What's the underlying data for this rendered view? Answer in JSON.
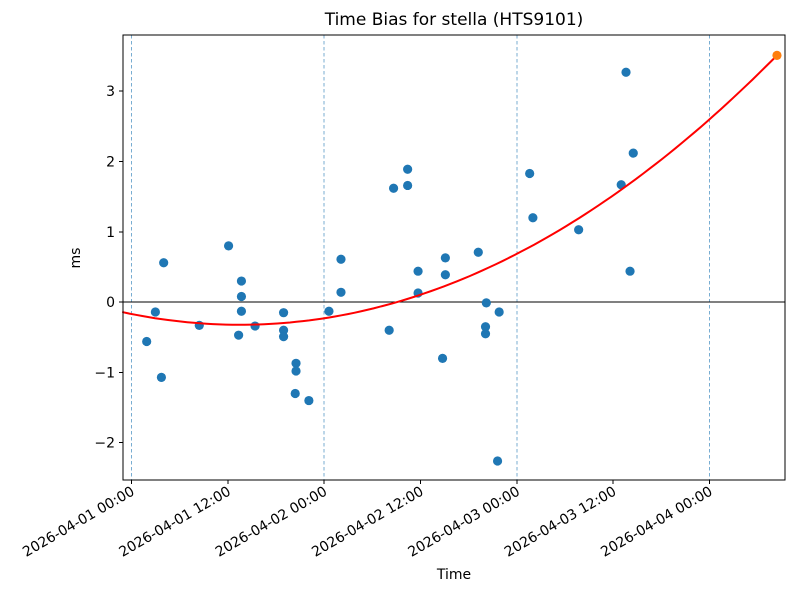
{
  "chart_data": {
    "type": "scatter",
    "title": "Time Bias for stella (HTS9101)",
    "xlabel": "Time",
    "ylabel": "ms",
    "epoch": "2026-04-01 00:00",
    "xlim_hours_from_epoch": [
      -1.05,
      81.4
    ],
    "ylim": [
      -2.53,
      3.8
    ],
    "y_ticks": [
      -2,
      -1,
      0,
      1,
      2,
      3
    ],
    "x_ticks": [
      "2026-04-01 00:00",
      "2026-04-01 12:00",
      "2026-04-02 00:00",
      "2026-04-02 12:00",
      "2026-04-03 00:00",
      "2026-04-03 12:00",
      "2026-04-04 00:00"
    ],
    "grid": "vertical-dashed-lines-at-midnight",
    "gridlines_x_times": [
      "2026-04-01 00:00",
      "2026-04-02 00:00",
      "2026-04-03 00:00",
      "2026-04-04 00:00"
    ],
    "gridline_color": "#78add2",
    "zero_line": {
      "y": 0,
      "color": "#000000"
    },
    "legend": null,
    "series": [
      {
        "name": "bias-observations",
        "marker": "circle",
        "color": "#1f77b4",
        "points": [
          {
            "time": "2026-04-01 01:54",
            "ms": -0.56
          },
          {
            "time": "2026-04-01 02:59",
            "ms": -0.14
          },
          {
            "time": "2026-04-01 03:44",
            "ms": -1.07
          },
          {
            "time": "2026-04-01 04:01",
            "ms": 0.56
          },
          {
            "time": "2026-04-01 08:27",
            "ms": -0.33
          },
          {
            "time": "2026-04-01 12:06",
            "ms": 0.8
          },
          {
            "time": "2026-04-01 13:21",
            "ms": -0.47
          },
          {
            "time": "2026-04-01 13:42",
            "ms": 0.3
          },
          {
            "time": "2026-04-01 13:42",
            "ms": 0.08
          },
          {
            "time": "2026-04-01 13:42",
            "ms": -0.13
          },
          {
            "time": "2026-04-01 15:24",
            "ms": -0.34
          },
          {
            "time": "2026-04-01 18:57",
            "ms": -0.15
          },
          {
            "time": "2026-04-01 18:57",
            "ms": -0.4
          },
          {
            "time": "2026-04-01 18:57",
            "ms": -0.49
          },
          {
            "time": "2026-04-01 20:24",
            "ms": -1.3
          },
          {
            "time": "2026-04-01 20:30",
            "ms": -0.87
          },
          {
            "time": "2026-04-01 20:30",
            "ms": -0.98
          },
          {
            "time": "2026-04-01 22:06",
            "ms": -1.4
          },
          {
            "time": "2026-04-02 00:36",
            "ms": -0.13
          },
          {
            "time": "2026-04-02 02:06",
            "ms": 0.61
          },
          {
            "time": "2026-04-02 02:06",
            "ms": 0.14
          },
          {
            "time": "2026-04-02 08:06",
            "ms": -0.4
          },
          {
            "time": "2026-04-02 08:39",
            "ms": 1.62
          },
          {
            "time": "2026-04-02 10:24",
            "ms": 1.89
          },
          {
            "time": "2026-04-02 10:24",
            "ms": 1.66
          },
          {
            "time": "2026-04-02 11:42",
            "ms": 0.44
          },
          {
            "time": "2026-04-02 11:42",
            "ms": 0.13
          },
          {
            "time": "2026-04-02 14:45",
            "ms": -0.8
          },
          {
            "time": "2026-04-02 15:06",
            "ms": 0.63
          },
          {
            "time": "2026-04-02 15:06",
            "ms": 0.39
          },
          {
            "time": "2026-04-02 19:12",
            "ms": 0.71
          },
          {
            "time": "2026-04-02 20:06",
            "ms": -0.35
          },
          {
            "time": "2026-04-02 20:06",
            "ms": -0.45
          },
          {
            "time": "2026-04-02 20:12",
            "ms": -0.01
          },
          {
            "time": "2026-04-02 21:36",
            "ms": -2.26
          },
          {
            "time": "2026-04-02 21:48",
            "ms": -0.14
          },
          {
            "time": "2026-04-03 01:36",
            "ms": 1.83
          },
          {
            "time": "2026-04-03 02:00",
            "ms": 1.2
          },
          {
            "time": "2026-04-03 07:42",
            "ms": 1.03
          },
          {
            "time": "2026-04-03 13:00",
            "ms": 1.67
          },
          {
            "time": "2026-04-03 13:36",
            "ms": 3.27
          },
          {
            "time": "2026-04-03 14:06",
            "ms": 0.44
          },
          {
            "time": "2026-04-03 14:30",
            "ms": 2.12
          }
        ]
      },
      {
        "name": "latest-observation",
        "marker": "circle",
        "color": "#ff7f0e",
        "points": [
          {
            "time": "2026-04-04 08:24",
            "ms": 3.51
          }
        ]
      }
    ],
    "trend": {
      "name": "polynomial-fit",
      "color": "#ff0000",
      "poly_coeffs_hours": [
        2.423e-07,
        0.000831,
        -0.022622,
        -0.16845
      ],
      "t_hours_range": [
        -1.05,
        80.4
      ]
    }
  }
}
